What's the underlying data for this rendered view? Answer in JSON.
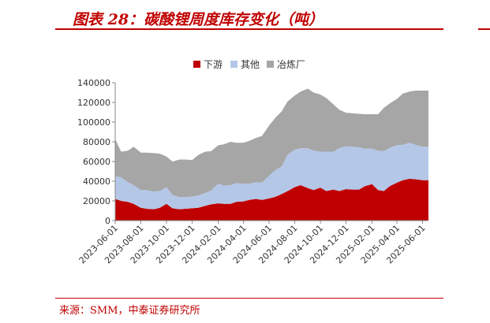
{
  "header": {
    "title": "图表 28：碳酸锂周度库存变化（吨）"
  },
  "footer": {
    "source": "来源：SMM，中泰证券研究所"
  },
  "chart_data": {
    "type": "area",
    "stacked": true,
    "title": "",
    "xlabel": "",
    "ylabel": "",
    "ylim": [
      0,
      140000
    ],
    "yticks": [
      "0",
      "20000",
      "40000",
      "60000",
      "80000",
      "100000",
      "120000",
      "140000"
    ],
    "xticks": [
      "2023-06-01",
      "2023-08-01",
      "2023-10-01",
      "2023-12-01",
      "2024-02-01",
      "2024-04-01",
      "2024-06-01",
      "2024-08-01",
      "2024-10-01",
      "2024-12-01",
      "2025-02-01",
      "2025-04-01",
      "2025-06-01"
    ],
    "legend_position": "top",
    "grid": false,
    "x": [
      "2023-06-01",
      "2023-06-15",
      "2023-07-01",
      "2023-07-15",
      "2023-08-01",
      "2023-08-15",
      "2023-09-01",
      "2023-09-15",
      "2023-10-01",
      "2023-10-15",
      "2023-11-01",
      "2023-11-15",
      "2023-12-01",
      "2023-12-15",
      "2024-01-01",
      "2024-01-15",
      "2024-02-01",
      "2024-02-15",
      "2024-03-01",
      "2024-03-15",
      "2024-04-01",
      "2024-04-15",
      "2024-05-01",
      "2024-05-15",
      "2024-06-01",
      "2024-06-15",
      "2024-07-01",
      "2024-07-15",
      "2024-08-01",
      "2024-08-15",
      "2024-09-01",
      "2024-09-15",
      "2024-10-01",
      "2024-10-15",
      "2024-11-01",
      "2024-11-15",
      "2024-12-01",
      "2024-12-15",
      "2025-01-01",
      "2025-01-15",
      "2025-02-01",
      "2025-02-15",
      "2025-03-01",
      "2025-03-15",
      "2025-04-01",
      "2025-04-15",
      "2025-05-01",
      "2025-05-15",
      "2025-06-01",
      "2025-06-15"
    ],
    "series": [
      {
        "name": "下游",
        "color": "#c00000",
        "values": [
          22000,
          20000,
          19000,
          17000,
          13000,
          12000,
          11500,
          13000,
          17000,
          12500,
          11500,
          12000,
          12500,
          13000,
          15000,
          16500,
          17500,
          17000,
          17000,
          19000,
          19500,
          21000,
          22000,
          21000,
          22500,
          24000,
          27000,
          30000,
          34000,
          36000,
          33000,
          31000,
          33500,
          30000,
          31500,
          30000,
          32000,
          31500,
          31500,
          35000,
          37000,
          31000,
          30000,
          35000,
          38500,
          41000,
          42500,
          42000,
          41000,
          41000
        ]
      },
      {
        "name": "其他",
        "color": "#b4c7e7",
        "values": [
          23000,
          24000,
          20000,
          19000,
          18000,
          19000,
          18000,
          17000,
          17000,
          13500,
          12500,
          12000,
          12000,
          12500,
          13000,
          14000,
          20000,
          18500,
          19000,
          19000,
          18000,
          16500,
          17000,
          17500,
          23000,
          27000,
          28000,
          37000,
          38000,
          37500,
          40500,
          40000,
          36500,
          40000,
          38500,
          43500,
          43500,
          43500,
          43000,
          38000,
          36000,
          40000,
          40500,
          39000,
          38000,
          36000,
          36500,
          35000,
          34000,
          34000
        ]
      },
      {
        "name": "冶炼厂",
        "color": "#a6a6a6",
        "values": [
          38000,
          26000,
          32000,
          39000,
          38000,
          38000,
          39000,
          38000,
          31000,
          34000,
          38000,
          38000,
          37000,
          41000,
          42000,
          40000,
          39000,
          42000,
          44000,
          41000,
          41500,
          43500,
          45000,
          47500,
          51000,
          53000,
          56000,
          54000,
          55000,
          57500,
          60500,
          59000,
          58000,
          54500,
          48000,
          39000,
          34000,
          34000,
          34000,
          35000,
          35000,
          37000,
          44000,
          45000,
          47000,
          52000,
          52000,
          55000,
          57000,
          57000
        ]
      }
    ]
  }
}
